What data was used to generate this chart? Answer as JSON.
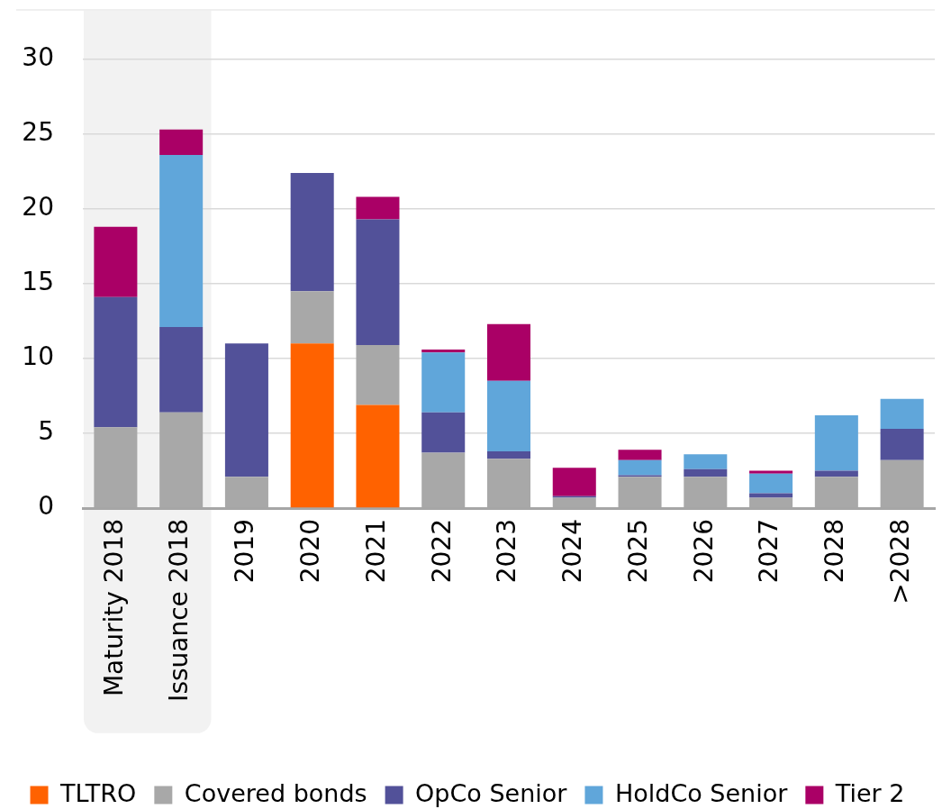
{
  "chart_data": {
    "type": "bar",
    "stacked": true,
    "categories": [
      "Maturity 2018",
      "Issuance 2018",
      "2019",
      "2020",
      "2021",
      "2022",
      "2023",
      "2024",
      "2025",
      "2026",
      "2027",
      "2028",
      ">2028"
    ],
    "series": [
      {
        "name": "TLTRO",
        "color": "#ff6200",
        "values": [
          0,
          0,
          0,
          11.0,
          6.9,
          0,
          0,
          0,
          0,
          0,
          0,
          0,
          0
        ]
      },
      {
        "name": "Covered bonds",
        "color": "#a8a8a8",
        "values": [
          5.4,
          6.4,
          2.1,
          3.5,
          4.0,
          3.7,
          3.3,
          0.7,
          2.1,
          2.1,
          0.7,
          2.1,
          3.2
        ]
      },
      {
        "name": "OpCo Senior",
        "color": "#525199",
        "values": [
          8.7,
          5.7,
          8.9,
          7.9,
          8.4,
          2.7,
          0.5,
          0.1,
          0.1,
          0.5,
          0.3,
          0.4,
          2.1
        ]
      },
      {
        "name": "HoldCo Senior",
        "color": "#60a6da",
        "values": [
          0,
          11.5,
          0,
          0,
          0,
          4.0,
          4.7,
          0,
          1.0,
          1.0,
          1.3,
          3.7,
          2.0
        ]
      },
      {
        "name": "Tier 2",
        "color": "#aa0066",
        "values": [
          4.7,
          1.7,
          0,
          0,
          1.5,
          0.2,
          3.8,
          1.9,
          0.7,
          0,
          0.2,
          0,
          0
        ]
      }
    ],
    "ylim": [
      0,
      33.3
    ],
    "yticks": [
      0,
      5,
      10,
      15,
      20,
      25,
      30
    ],
    "grid": "y",
    "legend": "bottom",
    "bands": [
      {
        "axis": "x",
        "from": "Maturity 2018",
        "to": "Issuance 2018",
        "color": "#f2f2f2"
      }
    ]
  }
}
